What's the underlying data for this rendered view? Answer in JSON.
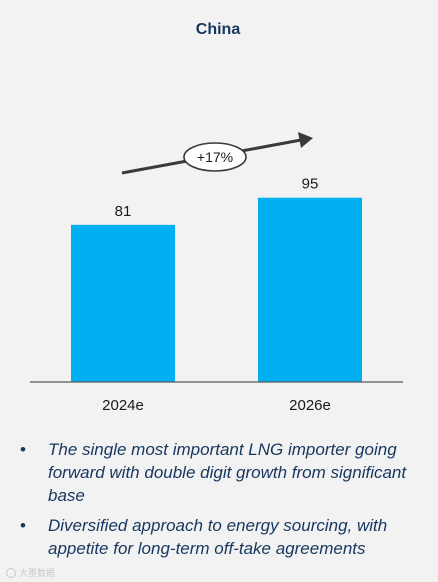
{
  "chart_data": {
    "type": "bar",
    "title": "China",
    "categories": [
      "2024e",
      "2026e"
    ],
    "values": [
      81,
      95
    ],
    "value_labels": [
      "81",
      "95"
    ],
    "annotation": "+17%",
    "xlabel": "",
    "ylabel": "",
    "ylim": [
      0,
      100
    ],
    "grid": false,
    "legend": "none"
  },
  "colors": {
    "bar": "#00b0f0",
    "title": "#17375e",
    "text": "#1a1a1a",
    "bullet_text": "#17375e",
    "axis": "#595959",
    "arrow": "#3a3a3a"
  },
  "bullets": [
    "The single most important LNG importer going forward with double digit growth from significant base",
    "Diversified approach to energy sourcing, with appetite for long-term off-take agreements"
  ],
  "bullet_marker": "•",
  "watermark": "大墨数据"
}
